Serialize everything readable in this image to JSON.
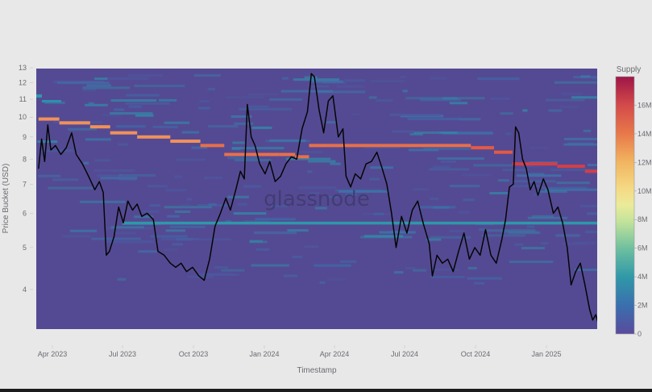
{
  "chart_data": {
    "type": "heatmap",
    "title": "",
    "xlabel": "Timestamp",
    "ylabel": "Price Bucket (USD)",
    "yscale": "log",
    "ylim": [
      3.2,
      13
    ],
    "y_ticks": [
      4,
      5,
      6,
      7,
      8,
      9,
      10,
      11,
      12,
      13
    ],
    "x_ticks": [
      "Apr 2023",
      "Jul 2023",
      "Oct 2023",
      "Jan 2024",
      "Apr 2024",
      "Jul 2024",
      "Oct 2024",
      "Jan 2025"
    ],
    "colorbar": {
      "title": "Supply",
      "ticks": [
        "0",
        "2M",
        "4M",
        "6M",
        "8M",
        "10M",
        "12M",
        "14M",
        "16M"
      ],
      "range": [
        0,
        18000000
      ],
      "colormap": "Spectral_r"
    },
    "watermark": "glassnode",
    "grid": false,
    "price_series": {
      "name": "Price",
      "color": "#000000",
      "points": [
        [
          "2023-03-14",
          7.6
        ],
        [
          "2023-03-18",
          8.9
        ],
        [
          "2023-03-22",
          7.9
        ],
        [
          "2023-03-26",
          9.6
        ],
        [
          "2023-03-30",
          8.4
        ],
        [
          "2023-04-05",
          8.6
        ],
        [
          "2023-04-12",
          8.2
        ],
        [
          "2023-04-19",
          8.5
        ],
        [
          "2023-04-26",
          9.2
        ],
        [
          "2023-05-02",
          8.2
        ],
        [
          "2023-05-10",
          7.8
        ],
        [
          "2023-05-18",
          7.3
        ],
        [
          "2023-05-26",
          6.8
        ],
        [
          "2023-06-01",
          7.1
        ],
        [
          "2023-06-06",
          6.7
        ],
        [
          "2023-06-10",
          4.8
        ],
        [
          "2023-06-14",
          4.9
        ],
        [
          "2023-06-20",
          5.3
        ],
        [
          "2023-06-26",
          6.2
        ],
        [
          "2023-07-02",
          5.7
        ],
        [
          "2023-07-08",
          6.4
        ],
        [
          "2023-07-14",
          6.1
        ],
        [
          "2023-07-20",
          6.3
        ],
        [
          "2023-07-26",
          5.9
        ],
        [
          "2023-08-02",
          6.0
        ],
        [
          "2023-08-10",
          5.8
        ],
        [
          "2023-08-16",
          4.9
        ],
        [
          "2023-08-24",
          4.8
        ],
        [
          "2023-09-01",
          4.6
        ],
        [
          "2023-09-08",
          4.5
        ],
        [
          "2023-09-15",
          4.6
        ],
        [
          "2023-09-22",
          4.4
        ],
        [
          "2023-09-30",
          4.5
        ],
        [
          "2023-10-08",
          4.3
        ],
        [
          "2023-10-15",
          4.2
        ],
        [
          "2023-10-22",
          4.7
        ],
        [
          "2023-10-29",
          5.6
        ],
        [
          "2023-11-05",
          6.0
        ],
        [
          "2023-11-12",
          6.5
        ],
        [
          "2023-11-18",
          6.1
        ],
        [
          "2023-11-25",
          6.8
        ],
        [
          "2023-12-01",
          7.5
        ],
        [
          "2023-12-06",
          7.2
        ],
        [
          "2023-12-10",
          10.7
        ],
        [
          "2023-12-15",
          9.0
        ],
        [
          "2023-12-20",
          8.6
        ],
        [
          "2023-12-26",
          7.8
        ],
        [
          "2024-01-02",
          7.4
        ],
        [
          "2024-01-08",
          7.9
        ],
        [
          "2024-01-15",
          7.1
        ],
        [
          "2024-01-22",
          7.3
        ],
        [
          "2024-01-29",
          7.8
        ],
        [
          "2024-02-05",
          8.1
        ],
        [
          "2024-02-12",
          8.0
        ],
        [
          "2024-02-19",
          9.4
        ],
        [
          "2024-02-26",
          10.3
        ],
        [
          "2024-03-02",
          12.6
        ],
        [
          "2024-03-06",
          12.4
        ],
        [
          "2024-03-12",
          10.4
        ],
        [
          "2024-03-18",
          9.2
        ],
        [
          "2024-03-24",
          10.9
        ],
        [
          "2024-03-30",
          11.2
        ],
        [
          "2024-04-06",
          9.0
        ],
        [
          "2024-04-12",
          9.4
        ],
        [
          "2024-04-16",
          7.3
        ],
        [
          "2024-04-22",
          6.9
        ],
        [
          "2024-04-28",
          7.4
        ],
        [
          "2024-05-05",
          7.2
        ],
        [
          "2024-05-12",
          7.8
        ],
        [
          "2024-05-19",
          7.9
        ],
        [
          "2024-05-26",
          8.3
        ],
        [
          "2024-06-02",
          7.6
        ],
        [
          "2024-06-08",
          7.0
        ],
        [
          "2024-06-14",
          6.0
        ],
        [
          "2024-06-20",
          5.0
        ],
        [
          "2024-06-27",
          5.9
        ],
        [
          "2024-07-04",
          5.4
        ],
        [
          "2024-07-11",
          6.1
        ],
        [
          "2024-07-18",
          6.4
        ],
        [
          "2024-07-25",
          5.7
        ],
        [
          "2024-08-02",
          5.1
        ],
        [
          "2024-08-06",
          4.3
        ],
        [
          "2024-08-12",
          4.8
        ],
        [
          "2024-08-19",
          4.6
        ],
        [
          "2024-08-26",
          4.7
        ],
        [
          "2024-09-02",
          4.4
        ],
        [
          "2024-09-09",
          4.9
        ],
        [
          "2024-09-16",
          5.4
        ],
        [
          "2024-09-23",
          4.7
        ],
        [
          "2024-09-30",
          5.0
        ],
        [
          "2024-10-07",
          4.8
        ],
        [
          "2024-10-14",
          5.5
        ],
        [
          "2024-10-21",
          4.8
        ],
        [
          "2024-10-28",
          4.6
        ],
        [
          "2024-11-04",
          5.2
        ],
        [
          "2024-11-09",
          5.8
        ],
        [
          "2024-11-14",
          6.9
        ],
        [
          "2024-11-19",
          7.0
        ],
        [
          "2024-11-22",
          9.5
        ],
        [
          "2024-11-26",
          9.2
        ],
        [
          "2024-12-01",
          8.0
        ],
        [
          "2024-12-06",
          7.6
        ],
        [
          "2024-12-11",
          6.8
        ],
        [
          "2024-12-16",
          7.1
        ],
        [
          "2024-12-21",
          6.6
        ],
        [
          "2024-12-28",
          7.2
        ],
        [
          "2025-01-03",
          6.8
        ],
        [
          "2025-01-10",
          6.0
        ],
        [
          "2025-01-16",
          6.2
        ],
        [
          "2025-01-22",
          5.7
        ],
        [
          "2025-01-28",
          5.0
        ],
        [
          "2025-02-02",
          4.1
        ],
        [
          "2025-02-08",
          4.4
        ],
        [
          "2025-02-14",
          4.6
        ],
        [
          "2025-02-20",
          4.1
        ],
        [
          "2025-02-26",
          3.6
        ],
        [
          "2025-03-02",
          3.4
        ],
        [
          "2025-03-06",
          3.5
        ],
        [
          "2025-03-10",
          3.3
        ]
      ]
    },
    "dominant_supply_band": {
      "description": "Highest-supply price bucket (orange/red band), stepping down over time",
      "steps": [
        [
          "2023-03-14",
          9.9,
          13500000
        ],
        [
          "2023-04-10",
          9.7,
          13500000
        ],
        [
          "2023-05-20",
          9.5,
          13700000
        ],
        [
          "2023-06-15",
          9.2,
          14000000
        ],
        [
          "2023-07-20",
          9.0,
          14000000
        ],
        [
          "2023-09-01",
          8.8,
          14300000
        ],
        [
          "2023-10-10",
          8.6,
          14500000
        ],
        [
          "2023-11-10",
          8.2,
          14700000
        ],
        [
          "2024-01-20",
          8.2,
          14700000
        ],
        [
          "2024-02-10",
          8.1,
          14700000
        ],
        [
          "2024-02-28",
          8.6,
          14800000
        ],
        [
          "2024-09-25",
          8.5,
          15000000
        ],
        [
          "2024-10-25",
          8.3,
          15300000
        ],
        [
          "2024-11-18",
          7.8,
          16200000
        ],
        [
          "2025-01-15",
          7.7,
          16500000
        ],
        [
          "2025-02-20",
          7.5,
          16800000
        ],
        [
          "2025-03-10",
          7.5,
          17000000
        ]
      ]
    },
    "secondary_supply_band": {
      "description": "Persistent cyan band near $5.7",
      "price": 5.7,
      "supply_approx": 3000000,
      "start": "2023-07-01",
      "end": "2025-03-10"
    }
  }
}
